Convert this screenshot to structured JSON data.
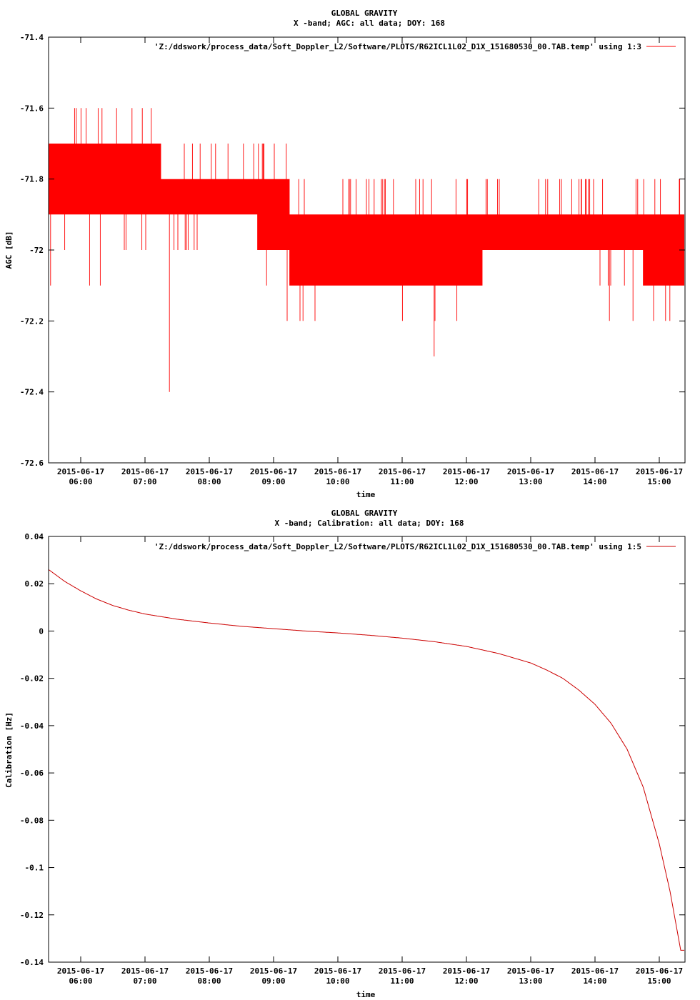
{
  "chart_data": [
    {
      "type": "line",
      "title": "GLOBAL GRAVITY",
      "subtitle": "X -band; AGC: all data; DOY: 168",
      "xlabel": "time",
      "ylabel": "AGC [dB]",
      "legend_position": "top-right",
      "series": [
        {
          "name": "'Z:/ddswork/process_data/Soft_Doppler_L2/Software/PLOTS/R62ICL1L02_D1X_151680530_00.TAB.temp' using 1:3",
          "color": "#ff0000",
          "x": [
            "05:30",
            "06:00",
            "06:30",
            "07:00",
            "07:30",
            "08:00",
            "08:30",
            "09:00",
            "09:30",
            "10:00",
            "10:30",
            "11:00",
            "11:30",
            "12:00",
            "12:30",
            "13:00",
            "13:30",
            "14:00",
            "14:30",
            "15:00",
            "15:20"
          ],
          "y": [
            -71.8,
            -71.8,
            -71.75,
            -71.8,
            -71.85,
            -71.85,
            -71.85,
            -71.9,
            -71.95,
            -71.95,
            -71.95,
            -72.05,
            -72.05,
            -72.05,
            -71.95,
            -71.95,
            -71.95,
            -71.95,
            -71.95,
            -72.0,
            -72.0
          ],
          "min": [
            -71.9,
            -71.9,
            -71.9,
            -71.9,
            -71.9,
            -71.9,
            -71.9,
            -72.0,
            -72.1,
            -72.1,
            -72.1,
            -72.1,
            -72.1,
            -72.1,
            -72.0,
            -72.0,
            -72.0,
            -72.0,
            -72.0,
            -72.1,
            -72.1
          ],
          "max": [
            -71.7,
            -71.7,
            -71.7,
            -71.7,
            -71.8,
            -71.8,
            -71.8,
            -71.8,
            -71.9,
            -71.9,
            -71.9,
            -71.9,
            -71.9,
            -71.9,
            -71.9,
            -71.9,
            -71.9,
            -71.9,
            -71.9,
            -71.9,
            -71.9
          ]
        }
      ],
      "ylim": [
        -72.6,
        -71.4
      ],
      "yticks": [
        -71.4,
        -71.6,
        -71.8,
        -72,
        -72.2,
        -72.4,
        -72.6
      ],
      "xtick_dates": [
        "2015-06-17",
        "2015-06-17",
        "2015-06-17",
        "2015-06-17",
        "2015-06-17",
        "2015-06-17",
        "2015-06-17",
        "2015-06-17",
        "2015-06-17",
        "2015-06-17"
      ],
      "xtick_times": [
        "06:00",
        "07:00",
        "08:00",
        "09:00",
        "10:00",
        "11:00",
        "12:00",
        "13:00",
        "14:00",
        "15:00"
      ],
      "grid": false
    },
    {
      "type": "line",
      "title": "GLOBAL GRAVITY",
      "subtitle": "X -band; Calibration: all data; DOY: 168",
      "xlabel": "time",
      "ylabel": "Calibration [Hz]",
      "legend_position": "top-right",
      "series": [
        {
          "name": "'Z:/ddswork/process_data/Soft_Doppler_L2/Software/PLOTS/R62ICL1L02_D1X_151680530_00.TAB.temp' using 1:5",
          "color": "#cc0000",
          "x": [
            "05:30",
            "05:45",
            "06:00",
            "06:15",
            "06:30",
            "06:45",
            "07:00",
            "07:30",
            "08:00",
            "08:30",
            "09:00",
            "09:30",
            "10:00",
            "10:30",
            "11:00",
            "11:30",
            "12:00",
            "12:30",
            "13:00",
            "13:15",
            "13:30",
            "13:45",
            "14:00",
            "14:15",
            "14:30",
            "14:45",
            "15:00",
            "15:10",
            "15:20"
          ],
          "y": [
            0.026,
            0.021,
            0.017,
            0.0135,
            0.0108,
            0.0088,
            0.0072,
            0.005,
            0.0034,
            0.002,
            0.001,
            0.0,
            -0.0008,
            -0.0018,
            -0.003,
            -0.0045,
            -0.0065,
            -0.0095,
            -0.0135,
            -0.0165,
            -0.02,
            -0.025,
            -0.031,
            -0.039,
            -0.05,
            -0.066,
            -0.09,
            -0.11,
            -0.135
          ]
        }
      ],
      "ylim": [
        -0.14,
        0.04
      ],
      "yticks": [
        0.04,
        0.02,
        0,
        -0.02,
        -0.04,
        -0.06,
        -0.08,
        -0.1,
        -0.12,
        -0.14
      ],
      "xtick_dates": [
        "2015-06-17",
        "2015-06-17",
        "2015-06-17",
        "2015-06-17",
        "2015-06-17",
        "2015-06-17",
        "2015-06-17",
        "2015-06-17",
        "2015-06-17",
        "2015-06-17"
      ],
      "xtick_times": [
        "06:00",
        "07:00",
        "08:00",
        "09:00",
        "10:00",
        "11:00",
        "12:00",
        "13:00",
        "14:00",
        "15:00"
      ],
      "grid": false
    }
  ]
}
